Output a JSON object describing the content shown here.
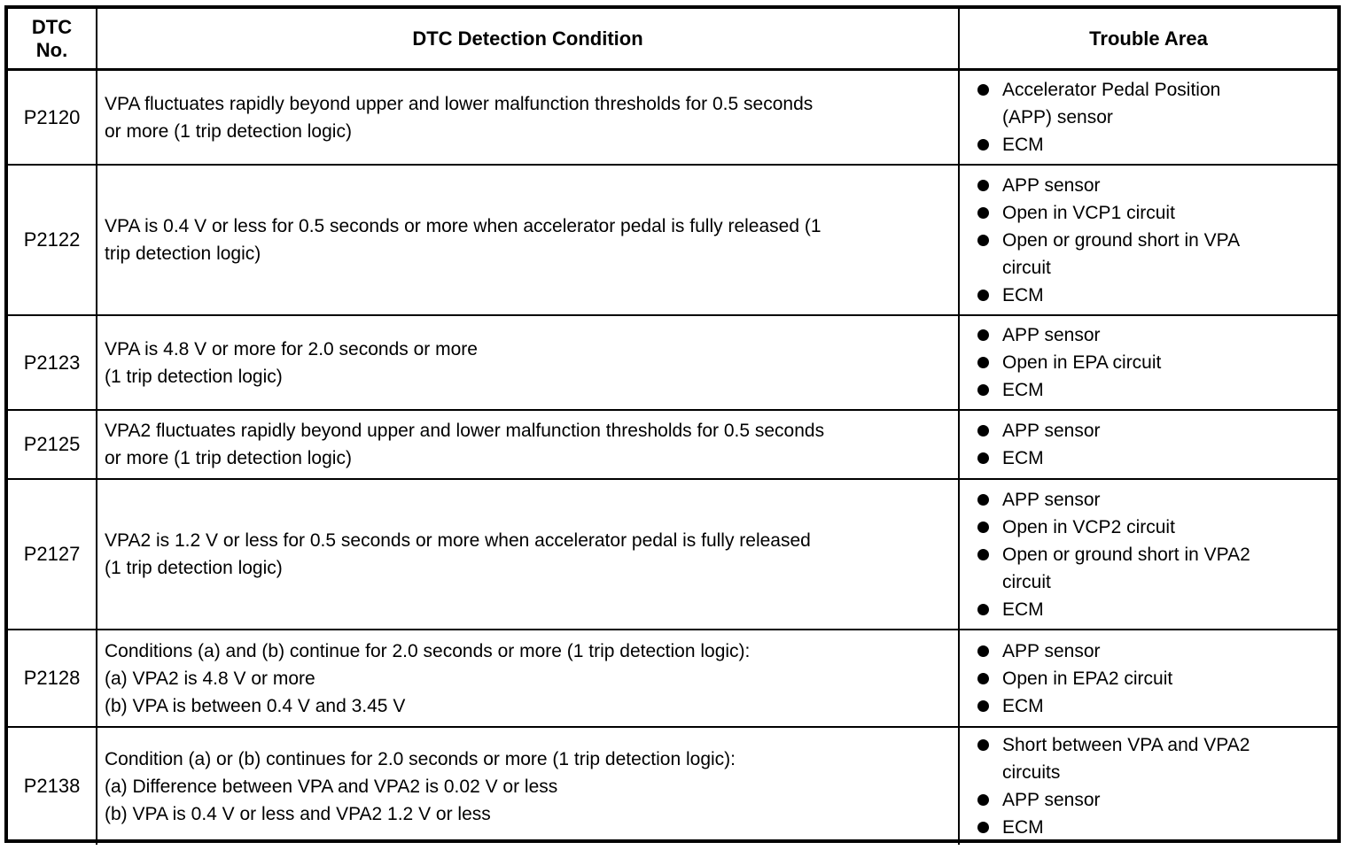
{
  "table": {
    "headers": {
      "dtc_no_line1": "DTC",
      "dtc_no_line2": "No.",
      "condition": "DTC Detection Condition",
      "trouble": "Trouble Area"
    },
    "rows": [
      {
        "dtc": "P2120",
        "condition_lines": [
          "VPA fluctuates rapidly beyond upper and lower malfunction thresholds for 0.5 seconds",
          "or more (1 trip detection logic)"
        ],
        "trouble_items": [
          [
            "Accelerator Pedal Position",
            "(APP) sensor"
          ],
          [
            "ECM"
          ]
        ]
      },
      {
        "dtc": "P2122",
        "condition_lines": [
          "VPA is 0.4 V or less for 0.5 seconds or more when accelerator pedal is fully released (1",
          "trip detection logic)"
        ],
        "trouble_items": [
          [
            "APP sensor"
          ],
          [
            "Open in VCP1 circuit"
          ],
          [
            "Open or ground short in VPA",
            "circuit"
          ],
          [
            "ECM"
          ]
        ]
      },
      {
        "dtc": "P2123",
        "condition_lines": [
          "VPA is 4.8 V or more for 2.0 seconds or more",
          "(1 trip detection logic)"
        ],
        "trouble_items": [
          [
            "APP sensor"
          ],
          [
            "Open in EPA circuit"
          ],
          [
            "ECM"
          ]
        ]
      },
      {
        "dtc": "P2125",
        "condition_lines": [
          "VPA2 fluctuates rapidly beyond upper and lower malfunction thresholds for 0.5 seconds",
          "or more (1 trip detection logic)"
        ],
        "trouble_items": [
          [
            "APP sensor"
          ],
          [
            "ECM"
          ]
        ]
      },
      {
        "dtc": "P2127",
        "condition_lines": [
          "VPA2 is 1.2 V or less for 0.5 seconds or more when accelerator pedal is fully released",
          "(1 trip detection logic)"
        ],
        "trouble_items": [
          [
            "APP sensor"
          ],
          [
            "Open in VCP2 circuit"
          ],
          [
            "Open or ground short in VPA2",
            "circuit"
          ],
          [
            "ECM"
          ]
        ]
      },
      {
        "dtc": "P2128",
        "condition_lines": [
          "Conditions (a) and (b) continue for 2.0 seconds or more (1 trip detection logic):",
          "(a) VPA2 is 4.8 V or more",
          "(b) VPA is between 0.4 V and 3.45 V"
        ],
        "trouble_items": [
          [
            "APP sensor"
          ],
          [
            "Open in EPA2 circuit"
          ],
          [
            "ECM"
          ]
        ]
      },
      {
        "dtc": "P2138",
        "condition_lines": [
          "Condition (a) or (b) continues for 2.0 seconds or more (1 trip detection logic):",
          "(a) Difference between VPA and VPA2 is 0.02 V or less",
          "(b) VPA is 0.4 V or less and VPA2 1.2 V or less"
        ],
        "trouble_items": [
          [
            "Short between VPA and VPA2",
            "circuits"
          ],
          [
            "APP sensor"
          ],
          [
            "ECM"
          ]
        ]
      }
    ]
  },
  "colors": {
    "border": "#000000",
    "text": "#000000",
    "background": "#ffffff"
  }
}
